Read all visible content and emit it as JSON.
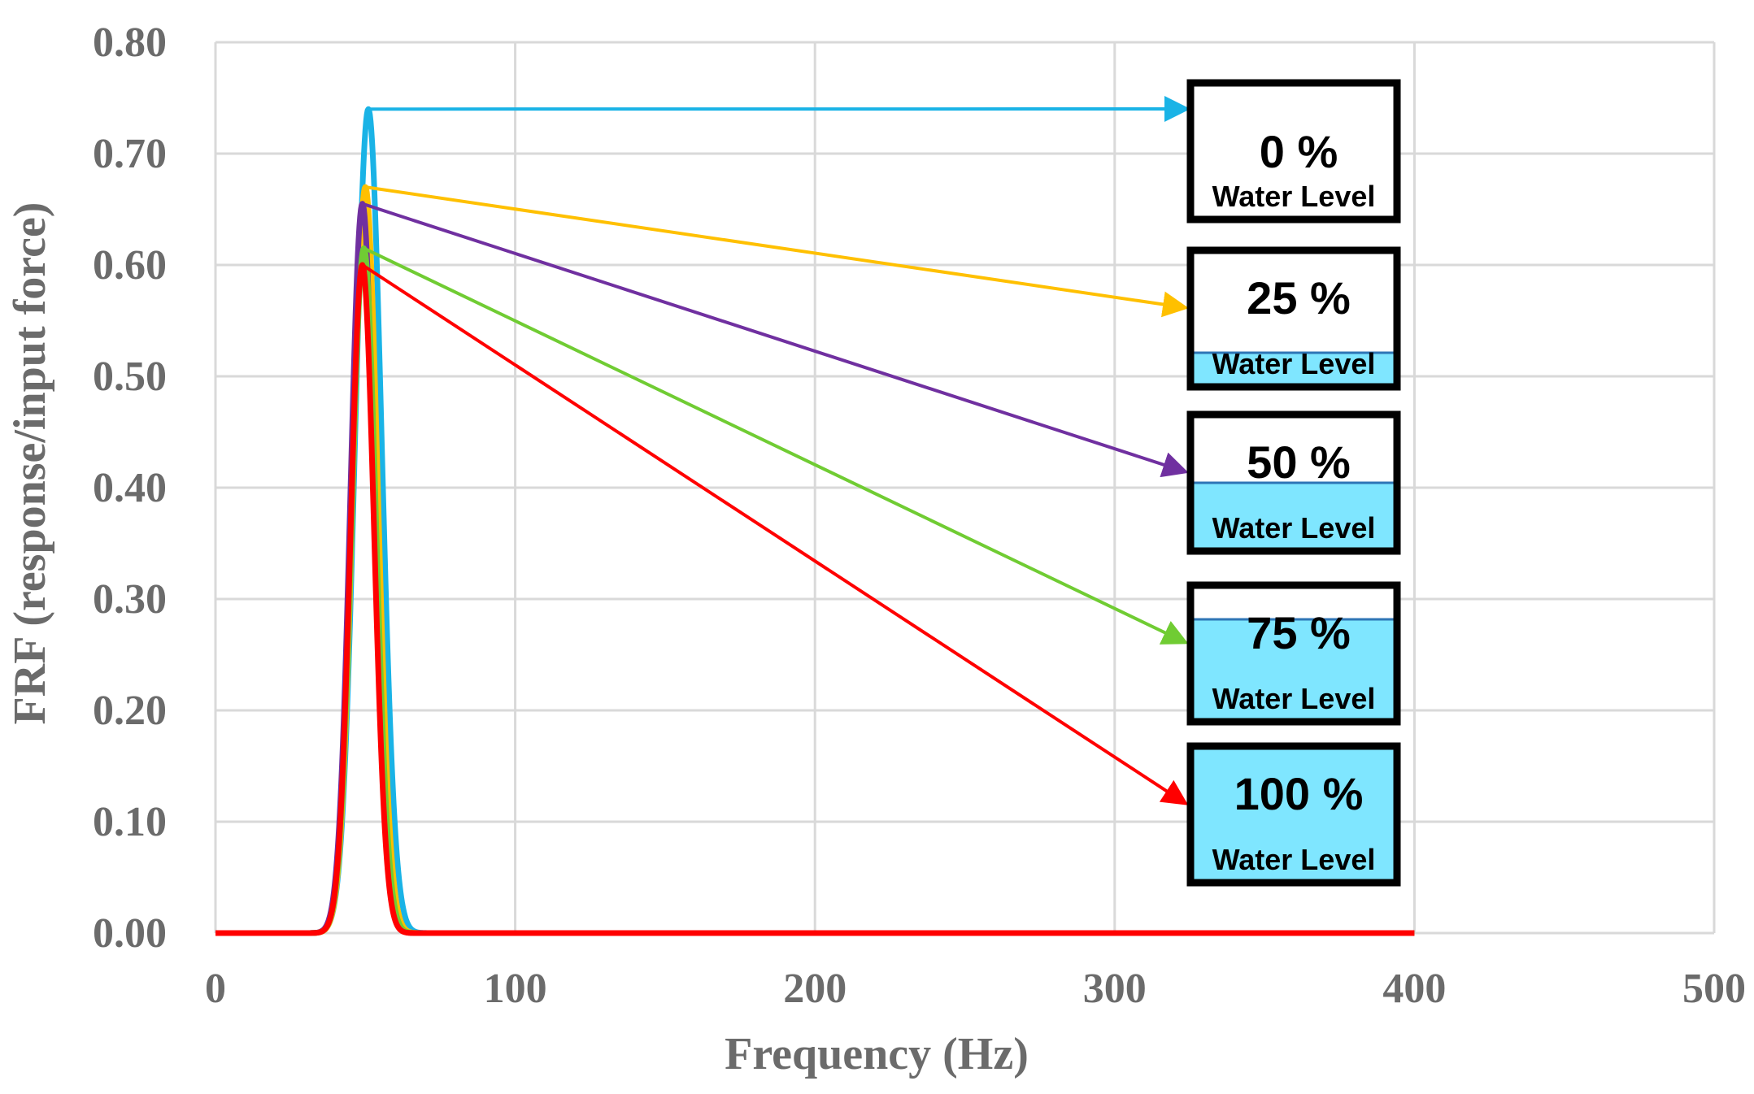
{
  "chart_data": {
    "type": "line",
    "title": "",
    "xlabel": "Frequency (Hz)",
    "ylabel": "FRF (response/input force)",
    "xlim": [
      0,
      500
    ],
    "ylim": [
      0,
      0.8
    ],
    "x_ticks": [
      0,
      100,
      200,
      300,
      400,
      500
    ],
    "x_tick_labels": [
      "0",
      "100",
      "200",
      "300",
      "400",
      "500"
    ],
    "y_ticks": [
      0,
      0.1,
      0.2,
      0.3,
      0.4,
      0.5,
      0.6,
      0.7,
      0.8
    ],
    "y_tick_labels": [
      "0.00",
      "0.10",
      "0.20",
      "0.30",
      "0.40",
      "0.50",
      "0.60",
      "0.70",
      "0.80"
    ],
    "grid": true,
    "x_data_max": 400,
    "series": [
      {
        "name": "0 % Water Level",
        "color": "#1ab3e6",
        "peak_hz": 51,
        "peak_value": 0.74,
        "width_hz": 6.2
      },
      {
        "name": "25 % Water Level",
        "color": "#ffc000",
        "peak_hz": 50,
        "peak_value": 0.67,
        "width_hz": 5.8
      },
      {
        "name": "50 % Water Level",
        "color": "#7030a0",
        "peak_hz": 49,
        "peak_value": 0.655,
        "width_hz": 5.6
      },
      {
        "name": "75 % Water Level",
        "color": "#70cc33",
        "peak_hz": 49.5,
        "peak_value": 0.615,
        "width_hz": 5.7
      },
      {
        "name": "100 % Water Level",
        "color": "#ff0000",
        "peak_hz": 49,
        "peak_value": 0.6,
        "width_hz": 5.5
      }
    ],
    "annotations": [
      {
        "pct": "0 %",
        "label": "Water Level",
        "fill_fraction": 0,
        "color": "#1ab3e6"
      },
      {
        "pct": "25 %",
        "label": "Water Level",
        "fill_fraction": 0.25,
        "color": "#ffc000"
      },
      {
        "pct": "50 %",
        "label": "Water Level",
        "fill_fraction": 0.5,
        "color": "#7030a0"
      },
      {
        "pct": "75 %",
        "label": "Water Level",
        "fill_fraction": 0.75,
        "color": "#70cc33"
      },
      {
        "pct": "100 %",
        "label": "Water Level",
        "fill_fraction": 1,
        "color": "#ff0000"
      }
    ],
    "water_color": "#7fe6ff",
    "grid_color": "#d9d9d9"
  }
}
